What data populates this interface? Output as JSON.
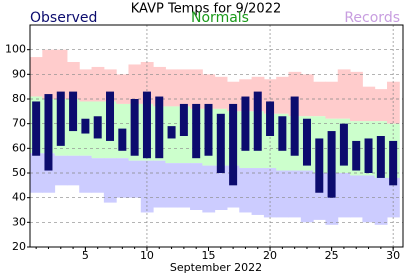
{
  "chart_data": {
    "type": "range-bar",
    "title": "KAVP Temps for 9/2022",
    "x_label": "September 2022",
    "x": [
      1,
      2,
      3,
      4,
      5,
      6,
      7,
      8,
      9,
      10,
      11,
      12,
      13,
      14,
      15,
      16,
      17,
      18,
      19,
      20,
      21,
      22,
      23,
      24,
      25,
      26,
      27,
      28,
      29,
      30
    ],
    "xlim": [
      0.5,
      30.8
    ],
    "xticks": [
      5,
      10,
      15,
      20,
      25,
      30
    ],
    "ylim": [
      20,
      110
    ],
    "yticks": [
      20,
      30,
      40,
      50,
      60,
      70,
      80,
      90,
      100
    ],
    "grid": true,
    "series": [
      {
        "name": "Observed",
        "color": "#0c0c6e",
        "high": [
          79,
          82,
          83,
          83,
          72,
          73,
          83,
          68,
          80,
          83,
          81,
          69,
          78,
          78,
          78,
          74,
          78,
          81,
          83,
          79,
          73,
          81,
          72,
          64,
          67,
          70,
          63,
          64,
          65,
          63
        ],
        "low": [
          57,
          51,
          61,
          67,
          66,
          64,
          63,
          59,
          57,
          56,
          56,
          64,
          65,
          56,
          57,
          50,
          45,
          59,
          59,
          65,
          59,
          57,
          53,
          42,
          40,
          53,
          51,
          50,
          48,
          45
        ]
      },
      {
        "name": "Normals",
        "color": "#1a9a1a",
        "fill": "#ccffcc",
        "high": [
          81,
          80,
          80,
          80,
          79,
          79,
          79,
          78,
          78,
          78,
          77,
          77,
          77,
          76,
          76,
          76,
          75,
          75,
          75,
          74,
          74,
          73,
          73,
          73,
          72,
          72,
          71,
          71,
          71,
          70
        ],
        "low": [
          58,
          58,
          57,
          57,
          57,
          56,
          56,
          56,
          55,
          55,
          55,
          54,
          54,
          54,
          53,
          53,
          53,
          52,
          52,
          52,
          51,
          51,
          51,
          50,
          50,
          50,
          49,
          49,
          48,
          48
        ]
      },
      {
        "name": "Records",
        "color": "#c89ee0",
        "fill_high": "#ffcccc",
        "fill_low": "#ccccff",
        "high": [
          97,
          100,
          100,
          95,
          92,
          93,
          92,
          90,
          94,
          95,
          93,
          92,
          92,
          92,
          90,
          89,
          87,
          88,
          89,
          88,
          89,
          91,
          90,
          87,
          87,
          92,
          91,
          85,
          84,
          87
        ],
        "low": [
          42,
          42,
          45,
          45,
          42,
          42,
          38,
          40,
          40,
          34,
          36,
          36,
          36,
          35,
          34,
          35,
          36,
          34,
          33,
          32,
          32,
          32,
          30,
          31,
          29,
          32,
          32,
          30,
          29,
          32
        ]
      }
    ]
  }
}
